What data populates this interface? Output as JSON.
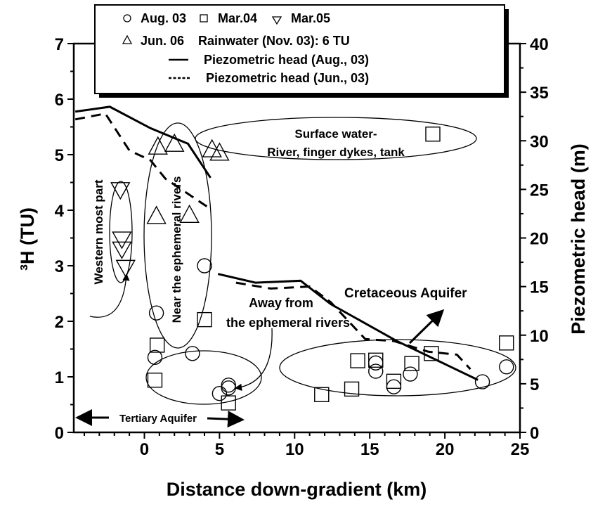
{
  "chart_data": {
    "type": "scatter",
    "xlabel": "Distance down-gradient (km)",
    "ylabel": "³H  (TU)",
    "ylabel_right": "Piezometric head (m)",
    "xlim": [
      -4.7,
      25
    ],
    "ylim": [
      0,
      7
    ],
    "ylim_right": [
      0,
      40
    ],
    "xticks": [
      0,
      5,
      10,
      15,
      20,
      25
    ],
    "yticks": [
      0,
      1,
      2,
      3,
      4,
      5,
      6,
      7
    ],
    "yticks_right": [
      0,
      5,
      10,
      15,
      20,
      25,
      30,
      35,
      40
    ],
    "grid": false,
    "legend_position": "top",
    "legend": {
      "aug03": "Aug. 03",
      "mar04": "Mar.04",
      "mar05": "Mar.05",
      "jun06": "Jun. 06",
      "rain": "Rainwater (Nov. 03): 6 TU",
      "head_aug": "Piezometric head (Aug., 03)",
      "head_jun": "Piezometric head (Jun., 03)"
    },
    "series": [
      {
        "name": "Aug. 03",
        "marker": "circle",
        "points": [
          [
            4.0,
            3.0
          ],
          [
            0.8,
            2.15
          ],
          [
            0.7,
            1.35
          ],
          [
            3.2,
            1.42
          ],
          [
            5.0,
            0.7
          ],
          [
            5.6,
            0.8
          ],
          [
            5.6,
            0.85
          ],
          [
            15.4,
            1.25
          ],
          [
            15.4,
            1.1
          ],
          [
            16.6,
            0.82
          ],
          [
            17.7,
            1.05
          ],
          [
            22.5,
            0.91
          ],
          [
            24.1,
            1.18
          ]
        ]
      },
      {
        "name": "Mar.04",
        "marker": "square",
        "points": [
          [
            4.0,
            2.03
          ],
          [
            0.85,
            1.57
          ],
          [
            0.7,
            0.94
          ],
          [
            5.6,
            0.53
          ],
          [
            19.2,
            5.37
          ],
          [
            11.8,
            0.68
          ],
          [
            13.8,
            0.78
          ],
          [
            14.2,
            1.29
          ],
          [
            15.4,
            1.3
          ],
          [
            16.6,
            0.92
          ],
          [
            17.8,
            1.24
          ],
          [
            19.1,
            1.42
          ],
          [
            24.1,
            1.61
          ]
        ]
      },
      {
        "name": "Mar.05",
        "marker": "triangle-down",
        "points": [
          [
            -1.6,
            4.37
          ],
          [
            -1.5,
            3.48
          ],
          [
            -1.5,
            3.3
          ],
          [
            -1.25,
            2.97
          ]
        ]
      },
      {
        "name": "Jun. 06",
        "marker": "triangle-up",
        "points": [
          [
            0.9,
            5.15
          ],
          [
            2.0,
            5.2
          ],
          [
            4.5,
            5.1
          ],
          [
            5.0,
            5.04
          ],
          [
            0.8,
            3.9
          ],
          [
            3.0,
            3.92
          ]
        ]
      }
    ],
    "lines": [
      {
        "name": "Piezometric head (Aug., 03)",
        "axis": "right",
        "style": "solid",
        "segments": [
          [
            [
              -4.6,
              33.0
            ],
            [
              -2.3,
              33.5
            ],
            [
              0.4,
              31.3
            ],
            [
              2.9,
              29.7
            ],
            [
              4.4,
              26.2
            ]
          ],
          [
            [
              4.9,
              16.3
            ],
            [
              7.4,
              15.4
            ],
            [
              10.4,
              15.6
            ],
            [
              12.4,
              13.2
            ],
            [
              16.8,
              9.4
            ],
            [
              22.2,
              5.4
            ]
          ]
        ]
      },
      {
        "name": "Piezometric head (Jun., 03)",
        "axis": "right",
        "style": "dashed",
        "segments": [
          [
            [
              -4.6,
              32.2
            ],
            [
              -2.6,
              32.8
            ],
            [
              -1.0,
              29.0
            ],
            [
              0.4,
              28.0
            ],
            [
              1.4,
              26.1
            ],
            [
              4.2,
              23.2
            ]
          ],
          [
            [
              6.1,
              15.4
            ],
            [
              8.4,
              14.8
            ],
            [
              11.0,
              15.0
            ],
            [
              12.4,
              13.4
            ],
            [
              14.7,
              9.6
            ],
            [
              16.6,
              9.4
            ],
            [
              18.9,
              8.3
            ],
            [
              20.8,
              8.0
            ],
            [
              21.7,
              6.5
            ]
          ]
        ]
      }
    ],
    "annotations": {
      "surface_1": "Surface water-",
      "surface_2": "River, finger dykes, tank",
      "western": "Western most part",
      "near": "Near the ephemeral rivers",
      "away_1": "Away from",
      "away_2": "the ephemeral rivers",
      "cretaceous": "Cretaceous Aquifer",
      "tertiary": "Tertiary Aquifer"
    }
  }
}
